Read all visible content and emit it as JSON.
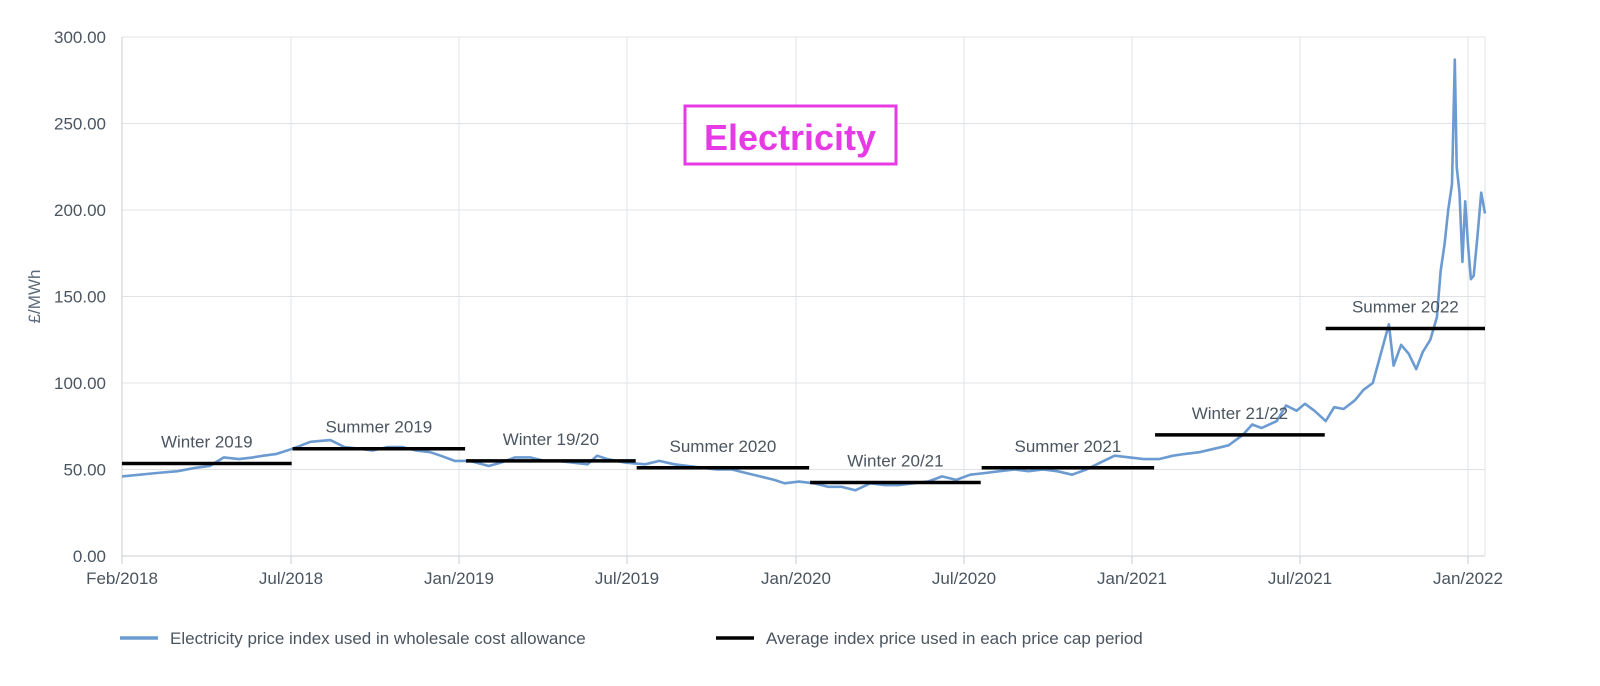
{
  "chart_data": {
    "type": "line",
    "title": "Electricity",
    "ylabel": "£/MWh",
    "xlabel": "",
    "ylim": [
      0,
      300
    ],
    "y_ticks": [
      "0.00",
      "50.00",
      "100.00",
      "150.00",
      "200.00",
      "250.00",
      "300.00"
    ],
    "x_ticks": [
      "Feb/2018",
      "Jul/2018",
      "Jan/2019",
      "Jul/2019",
      "Jan/2020",
      "Jul/2020",
      "Jan/2021",
      "Jul/2021",
      "Jan/2022"
    ],
    "grid": true,
    "legend_position": "bottom",
    "colors": {
      "index": "#6b9bd1",
      "average": "#000000",
      "title": "#e53ae5"
    },
    "series": [
      {
        "name": "Electricity price index used in wholesale cost allowance",
        "points": [
          [
            "2018-02-01",
            46
          ],
          [
            "2018-02-20",
            47
          ],
          [
            "2018-03-10",
            48
          ],
          [
            "2018-04-01",
            49
          ],
          [
            "2018-04-20",
            51
          ],
          [
            "2018-05-05",
            52
          ],
          [
            "2018-05-20",
            57
          ],
          [
            "2018-06-05",
            56
          ],
          [
            "2018-06-20",
            57
          ],
          [
            "2018-07-01",
            58
          ],
          [
            "2018-07-15",
            59
          ],
          [
            "2018-08-01",
            62
          ],
          [
            "2018-08-20",
            66
          ],
          [
            "2018-09-10",
            67
          ],
          [
            "2018-09-25",
            63
          ],
          [
            "2018-10-10",
            62
          ],
          [
            "2018-10-25",
            61
          ],
          [
            "2018-11-10",
            63
          ],
          [
            "2018-11-25",
            63
          ],
          [
            "2018-12-10",
            61
          ],
          [
            "2018-12-25",
            60
          ],
          [
            "2019-01-05",
            58
          ],
          [
            "2019-01-20",
            55
          ],
          [
            "2019-02-05",
            55
          ],
          [
            "2019-02-25",
            52
          ],
          [
            "2019-03-10",
            54
          ],
          [
            "2019-03-25",
            57
          ],
          [
            "2019-04-10",
            57
          ],
          [
            "2019-04-25",
            55
          ],
          [
            "2019-05-10",
            55
          ],
          [
            "2019-05-25",
            54
          ],
          [
            "2019-06-10",
            53
          ],
          [
            "2019-06-20",
            58
          ],
          [
            "2019-07-01",
            56
          ],
          [
            "2019-07-20",
            54
          ],
          [
            "2019-08-10",
            53
          ],
          [
            "2019-08-25",
            55
          ],
          [
            "2019-09-10",
            53
          ],
          [
            "2019-09-25",
            52
          ],
          [
            "2019-10-10",
            51
          ],
          [
            "2019-10-25",
            50
          ],
          [
            "2019-11-10",
            50
          ],
          [
            "2019-11-25",
            48
          ],
          [
            "2019-12-10",
            46
          ],
          [
            "2019-12-25",
            44
          ],
          [
            "2020-01-05",
            42
          ],
          [
            "2020-01-20",
            43
          ],
          [
            "2020-02-05",
            42
          ],
          [
            "2020-02-20",
            40
          ],
          [
            "2020-03-05",
            40
          ],
          [
            "2020-03-20",
            38
          ],
          [
            "2020-04-05",
            42
          ],
          [
            "2020-04-20",
            41
          ],
          [
            "2020-05-05",
            41
          ],
          [
            "2020-05-20",
            42
          ],
          [
            "2020-06-05",
            43
          ],
          [
            "2020-06-20",
            46
          ],
          [
            "2020-07-05",
            44
          ],
          [
            "2020-07-20",
            47
          ],
          [
            "2020-08-05",
            48
          ],
          [
            "2020-08-20",
            49
          ],
          [
            "2020-09-05",
            50
          ],
          [
            "2020-09-20",
            49
          ],
          [
            "2020-10-05",
            50
          ],
          [
            "2020-10-20",
            49
          ],
          [
            "2020-11-05",
            47
          ],
          [
            "2020-11-20",
            50
          ],
          [
            "2020-12-05",
            54
          ],
          [
            "2020-12-20",
            58
          ],
          [
            "2021-01-05",
            57
          ],
          [
            "2021-01-20",
            56
          ],
          [
            "2021-02-05",
            56
          ],
          [
            "2021-02-20",
            58
          ],
          [
            "2021-03-05",
            59
          ],
          [
            "2021-03-20",
            60
          ],
          [
            "2021-04-05",
            62
          ],
          [
            "2021-04-20",
            64
          ],
          [
            "2021-05-05",
            70
          ],
          [
            "2021-05-15",
            76
          ],
          [
            "2021-05-25",
            74
          ],
          [
            "2021-06-10",
            78
          ],
          [
            "2021-06-20",
            87
          ],
          [
            "2021-07-01",
            84
          ],
          [
            "2021-07-10",
            88
          ],
          [
            "2021-07-20",
            84
          ],
          [
            "2021-08-01",
            78
          ],
          [
            "2021-08-10",
            86
          ],
          [
            "2021-08-20",
            85
          ],
          [
            "2021-09-01",
            90
          ],
          [
            "2021-09-10",
            96
          ],
          [
            "2021-09-20",
            100
          ],
          [
            "2021-09-30",
            120
          ],
          [
            "2021-10-07",
            134
          ],
          [
            "2021-10-12",
            110
          ],
          [
            "2021-10-20",
            122
          ],
          [
            "2021-10-28",
            117
          ],
          [
            "2021-11-05",
            108
          ],
          [
            "2021-11-12",
            118
          ],
          [
            "2021-11-20",
            125
          ],
          [
            "2021-11-27",
            138
          ],
          [
            "2021-12-01",
            165
          ],
          [
            "2021-12-05",
            180
          ],
          [
            "2021-12-09",
            200
          ],
          [
            "2021-12-13",
            215
          ],
          [
            "2021-12-16",
            287
          ],
          [
            "2021-12-18",
            225
          ],
          [
            "2021-12-21",
            210
          ],
          [
            "2021-12-24",
            170
          ],
          [
            "2021-12-27",
            205
          ],
          [
            "2021-12-30",
            180
          ],
          [
            "2022-01-02",
            160
          ],
          [
            "2022-01-05",
            162
          ],
          [
            "2022-01-09",
            185
          ],
          [
            "2022-01-13",
            210
          ],
          [
            "2022-01-17",
            198
          ]
        ]
      },
      {
        "name": "Average index price used in each price cap period",
        "periods": [
          {
            "label": "Winter 2019",
            "start": "2018-02-01",
            "end": "2018-07-31",
            "value": 53.5
          },
          {
            "label": "Summer 2019",
            "start": "2018-08-01",
            "end": "2019-01-31",
            "value": 62
          },
          {
            "label": "Winter 19/20",
            "start": "2019-02-01",
            "end": "2019-07-31",
            "value": 55
          },
          {
            "label": "Summer 2020",
            "start": "2019-08-01",
            "end": "2020-01-31",
            "value": 51
          },
          {
            "label": "Winter 20/21",
            "start": "2020-02-01",
            "end": "2020-07-31",
            "value": 42.5
          },
          {
            "label": "Summer 2021",
            "start": "2020-08-01",
            "end": "2021-01-31",
            "value": 51
          },
          {
            "label": "Winter 21/22",
            "start": "2021-02-01",
            "end": "2021-07-31",
            "value": 70
          },
          {
            "label": "Summer 2022",
            "start": "2021-08-01",
            "end": "2022-01-17",
            "value": 131.5
          }
        ]
      }
    ],
    "legend": [
      {
        "label": "Electricity price index used in wholesale cost allowance",
        "color": "#6b9bd1"
      },
      {
        "label": "Average index price used in each price cap period",
        "color": "#000000"
      }
    ]
  }
}
